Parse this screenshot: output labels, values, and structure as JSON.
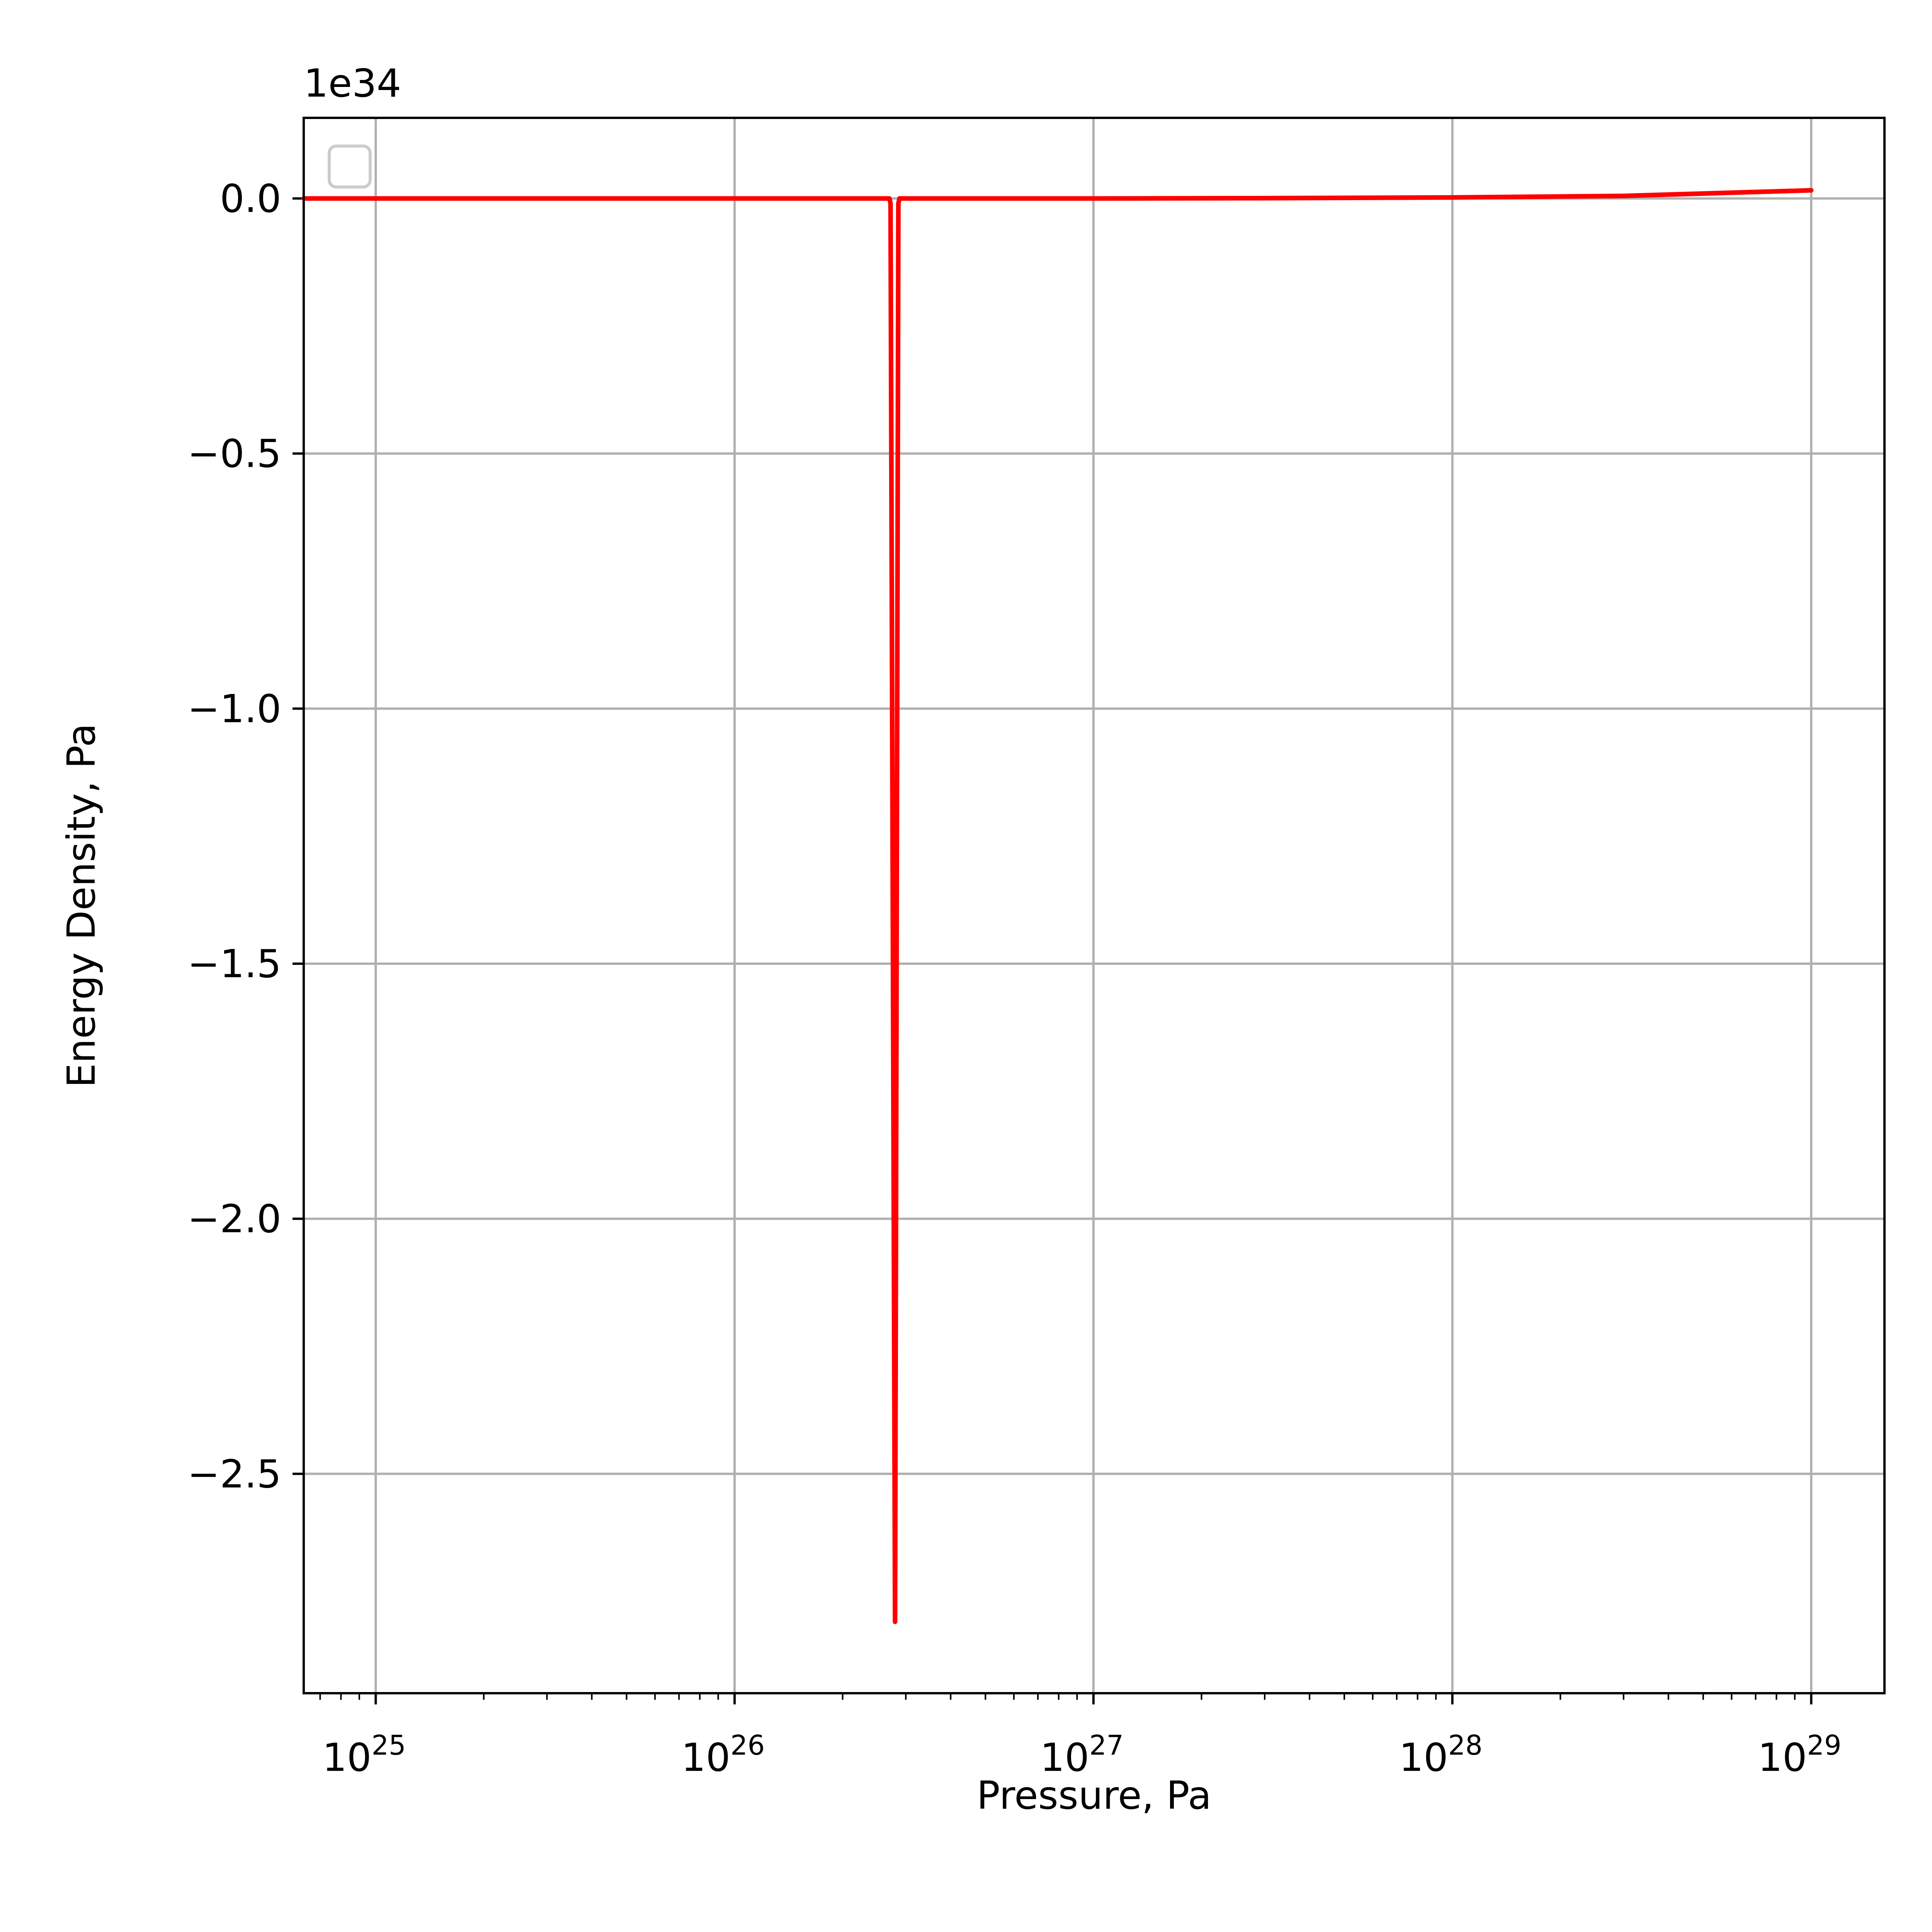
{
  "chart_data": {
    "type": "line",
    "xlabel": "Pressure, Pa",
    "ylabel": "Energy Density, Pa",
    "x_scale": "log",
    "xlim": [
      6.3e+24,
      1.6e+29
    ],
    "ylim": [
      -2.93,
      0.158
    ],
    "y_offset_label": "1e34",
    "grid": true,
    "legend": {
      "placement": "top-left",
      "entries": []
    },
    "x_ticks": [
      {
        "value": 1e+25,
        "base": "10",
        "exp": "25"
      },
      {
        "value": 1e+26,
        "base": "10",
        "exp": "26"
      },
      {
        "value": 1e+27,
        "base": "10",
        "exp": "27"
      },
      {
        "value": 1e+28,
        "base": "10",
        "exp": "28"
      },
      {
        "value": 1e+29,
        "base": "10",
        "exp": "29"
      }
    ],
    "y_ticks": [
      {
        "value": 0.0,
        "label": "0.0"
      },
      {
        "value": -0.5,
        "label": "−0.5"
      },
      {
        "value": -1.0,
        "label": "−1.0"
      },
      {
        "value": -1.5,
        "label": "−1.5"
      },
      {
        "value": -2.0,
        "label": "−2.0"
      },
      {
        "value": -2.5,
        "label": "−2.5"
      }
    ],
    "series": [
      {
        "color": "#ff0000",
        "x": [
          6.3e+24,
          1e+25,
          5e+25,
          1e+26,
          2e+26,
          2.7e+26,
          2.72e+26,
          2.8e+26,
          2.86e+26,
          2.88e+26,
          5e+26,
          1e+27,
          3e+27,
          1e+28,
          3e+28,
          1e+29
        ],
        "y": [
          0.0,
          0.0,
          0.0,
          0.0,
          0.0,
          0.0,
          -0.01,
          -2.79,
          -0.01,
          0.0,
          0.0,
          0.0,
          0.0005,
          0.002,
          0.005,
          0.016
        ]
      }
    ]
  }
}
